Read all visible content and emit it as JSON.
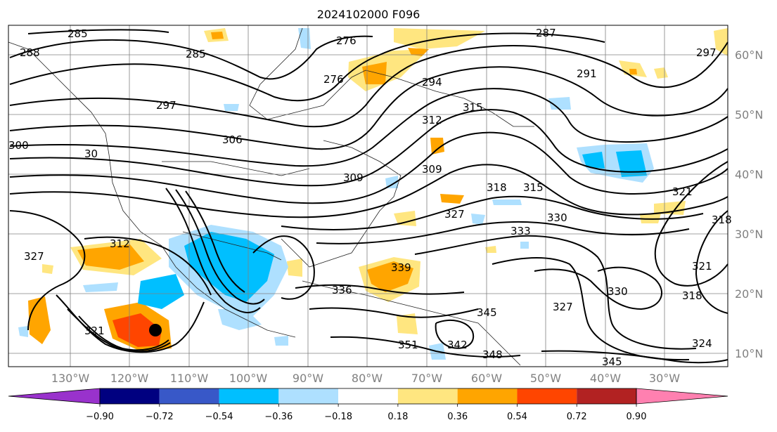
{
  "title": "2024102000 F096",
  "map": {
    "lat_labels": [
      "60°N",
      "50°N",
      "40°N",
      "30°N",
      "20°N",
      "10°N"
    ],
    "lon_labels": [
      "130°W",
      "120°W",
      "110°W",
      "100°W",
      "90°W",
      "80°W",
      "70°W",
      "60°W",
      "50°W",
      "40°W",
      "30°W"
    ],
    "contour_labels": [
      "285",
      "288",
      "276",
      "287",
      "297",
      "294",
      "291",
      "297",
      "276",
      "315",
      "312",
      "300",
      "30",
      "306",
      "309",
      "309",
      "318",
      "315",
      "321",
      "318",
      "321",
      "330",
      "333",
      "327",
      "312",
      "327",
      "339",
      "336",
      "330",
      "327",
      "321",
      "345",
      "351",
      "342",
      "348",
      "324",
      "345",
      "318"
    ],
    "storm_marker": "tropical-cyclone"
  },
  "colorbar": {
    "ticks": [
      "−0.90",
      "−0.72",
      "−0.54",
      "−0.36",
      "−0.18",
      "0.18",
      "0.36",
      "0.54",
      "0.72",
      "0.90"
    ],
    "colors": [
      "#9932cc",
      "#000080",
      "#3858c8",
      "#00bfff",
      "#aee0ff",
      "#ffffff",
      "#ffe680",
      "#ffa500",
      "#ff4500",
      "#b22222",
      "#ff80b0"
    ]
  },
  "styling": {
    "positive_shading": "#ffa500",
    "positive_light": "#ffe680",
    "negative_shading": "#00bfff",
    "negative_light": "#aee0ff",
    "strong_positive": "#ff4500"
  }
}
